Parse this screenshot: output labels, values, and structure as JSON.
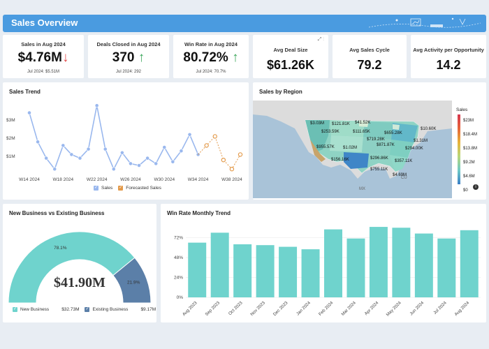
{
  "header": {
    "title": "Sales Overview"
  },
  "kpis": {
    "sales": {
      "title": "Sales in Aug 2024",
      "value": "$4.76M",
      "arrow": "↓",
      "sub": "Jul 2024: $5.51M"
    },
    "deals": {
      "title": "Deals Closed in Aug 2024",
      "value": "370",
      "arrow": "↑",
      "sub": "Jul 2024: 292"
    },
    "winrate": {
      "title": "Win Rate in Aug 2024",
      "value": "80.72%",
      "arrow": "↑",
      "sub": "Jul 2024: 70.7%"
    },
    "avg_deal": {
      "title": "Avg Deal Size",
      "value": "$61.26K"
    },
    "avg_cycle": {
      "title": "Avg Sales Cycle",
      "value": "79.2"
    },
    "avg_activity": {
      "title": "Avg Activity per Opportunity",
      "value": "14.2"
    }
  },
  "sales_trend": {
    "title": "Sales Trend",
    "legend": {
      "sales": "Sales",
      "forecast": "Forecasted Sales"
    }
  },
  "sales_by_region": {
    "title": "Sales by Region",
    "legend_title": "Sales",
    "scale_labels": [
      "$23M",
      "$18.4M",
      "$13.8M",
      "$9.2M",
      "$4.6M",
      "$0"
    ],
    "regions": [
      "$3.03M",
      "$121.81K",
      "$41.52K",
      "$253.59K",
      "$111.65K",
      "$655.28K",
      "$10.60K",
      "$719.28K",
      "$955.57K",
      "$1.02M",
      "$871.87K",
      "$1.31M",
      "$294.00K",
      "$156.16K",
      "$296.86K",
      "$357.11K",
      "$755.11K",
      "$4.69M"
    ],
    "map_marks": {
      "mx": "MX",
      "cu": "CU"
    }
  },
  "new_vs_existing": {
    "title": "New Business vs Existing Business",
    "total": "$41.90M",
    "new_pct_label": "78.1%",
    "existing_pct_label": "21.9%",
    "legend": {
      "new_label": "New Business",
      "new_value": "$32.73M",
      "existing_label": "Existing Business",
      "existing_value": "$9.17M"
    }
  },
  "win_rate_trend": {
    "title": "Win Rate Monthly Trend"
  },
  "colors": {
    "header": "#4a9be0",
    "line": "#9ab8ee",
    "forecast": "#e39a4b",
    "teal": "#6fd3cd",
    "steel": "#5b7fa8"
  },
  "chart_data": [
    {
      "type": "line",
      "title": "Sales Trend",
      "y_ticks": [
        "$3M",
        "$2M",
        "$1M"
      ],
      "x_ticks": [
        "W14 2024",
        "W18 2024",
        "W22 2024",
        "W26 2024",
        "W30 2024",
        "W34 2024",
        "W38 2024"
      ],
      "ylim": [
        0,
        4
      ],
      "series": [
        {
          "name": "Sales",
          "x": [
            14,
            15,
            16,
            17,
            18,
            19,
            20,
            21,
            22,
            23,
            24,
            25,
            26,
            27,
            28,
            29,
            30,
            31,
            32,
            33,
            34
          ],
          "values": [
            3.4,
            1.8,
            0.9,
            0.3,
            1.6,
            1.1,
            0.9,
            1.4,
            3.8,
            1.4,
            0.3,
            1.2,
            0.6,
            0.5,
            0.9,
            0.6,
            1.5,
            0.7,
            1.3,
            2.2,
            1.1
          ]
        },
        {
          "name": "Forecasted Sales",
          "x": [
            35,
            36,
            37,
            38,
            39
          ],
          "values": [
            1.6,
            2.1,
            0.8,
            0.3,
            1.1
          ]
        }
      ]
    },
    {
      "type": "pie",
      "title": "New Business vs Existing Business",
      "labels": [
        "New Business",
        "Existing Business"
      ],
      "values": [
        78.1,
        21.9
      ]
    },
    {
      "type": "bar",
      "title": "Win Rate Monthly Trend",
      "categories": [
        "Aug 2023",
        "Sep 2023",
        "Oct 2023",
        "Nov 2023",
        "Dec 2023",
        "Jan 2024",
        "Feb 2024",
        "Mar 2024",
        "Apr 2024",
        "May 2024",
        "Jun 2024",
        "Jul 2024",
        "Aug 2024"
      ],
      "values": [
        66,
        78,
        64,
        63,
        61,
        58,
        82,
        71,
        85,
        84,
        77,
        71,
        81
      ],
      "y_ticks": [
        "72%",
        "48%",
        "24%",
        "0%"
      ],
      "ylim": [
        0,
        96
      ]
    }
  ]
}
